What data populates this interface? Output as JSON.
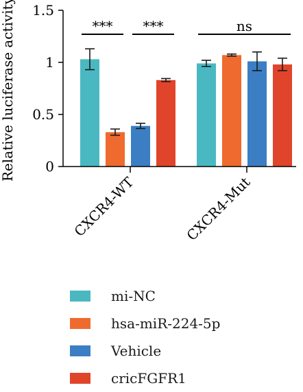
{
  "chart_data": {
    "type": "bar",
    "title": "",
    "xlabel": "",
    "ylabel": "Relative luciferase activity",
    "ylim": [
      0,
      1.5
    ],
    "yticks": [
      0,
      0.5,
      1,
      1.5
    ],
    "ytick_labels": [
      "0",
      "0.5",
      "1",
      "1.5"
    ],
    "grid": false,
    "legend_position": "bottom",
    "categories": [
      "CXCR4-WT",
      "CXCR4-Mut"
    ],
    "series": [
      {
        "name": "mi-NC",
        "color": "#4ab8c1",
        "values": [
          1.03,
          0.99
        ],
        "errors": [
          0.1,
          0.03
        ]
      },
      {
        "name": "hsa-miR-224-5p",
        "color": "#ef6a2e",
        "values": [
          0.33,
          1.07
        ],
        "errors": [
          0.03,
          0.01
        ]
      },
      {
        "name": "Vehicle",
        "color": "#3c7ec4",
        "values": [
          0.39,
          1.01
        ],
        "errors": [
          0.025,
          0.09
        ]
      },
      {
        "name": "cricFGFR1",
        "color": "#e0452b",
        "values": [
          0.83,
          0.98
        ],
        "errors": [
          0.015,
          0.06
        ]
      }
    ],
    "annotations": [
      {
        "text": "***",
        "category": 0,
        "from_series": 0,
        "to_series": 1,
        "y": 1.27
      },
      {
        "text": "***",
        "category": 0,
        "from_series": 2,
        "to_series": 3,
        "y": 1.27
      },
      {
        "text": "ns",
        "category": 1,
        "from_series": 0,
        "to_series": 3,
        "y": 1.27
      }
    ]
  }
}
